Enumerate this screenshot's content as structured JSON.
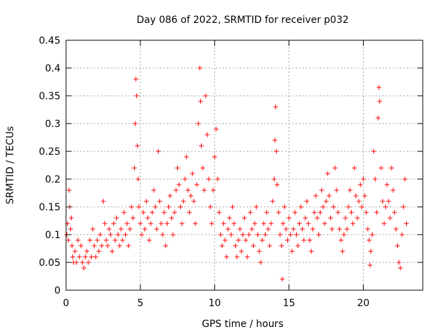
{
  "chart_data": {
    "type": "scatter",
    "title": "Day 086 of 2022, SRMTID for receiver p032",
    "xlabel": "GPS time / hours",
    "ylabel": "SRMTID / TECUs",
    "xlim": [
      0,
      24
    ],
    "ylim": [
      0,
      0.45
    ],
    "grid": true,
    "marker": "+",
    "colors": {
      "series": "#ff0000",
      "grid": "#a0a0a0",
      "axis": "#000000"
    },
    "xticks": [
      0,
      5,
      10,
      15,
      20
    ],
    "xtick_labels": [
      "0",
      "5",
      "10",
      "15",
      "20"
    ],
    "yticks": [
      0,
      0.05,
      0.1,
      0.15,
      0.2,
      0.25,
      0.3,
      0.35,
      0.4,
      0.45
    ],
    "ytick_labels": [
      "0",
      "0.05",
      "0.1",
      "0.15",
      "0.2",
      "0.25",
      "0.3",
      "0.35",
      "0.4",
      "0.45"
    ],
    "series": [
      {
        "name": "SRMTID p032",
        "points": [
          [
            0.05,
            0.1
          ],
          [
            0.1,
            0.12
          ],
          [
            0.15,
            0.09
          ],
          [
            0.2,
            0.18
          ],
          [
            0.25,
            0.15
          ],
          [
            0.3,
            0.11
          ],
          [
            0.35,
            0.13
          ],
          [
            0.4,
            0.08
          ],
          [
            0.45,
            0.06
          ],
          [
            0.5,
            0.05
          ],
          [
            0.6,
            0.07
          ],
          [
            0.7,
            0.05
          ],
          [
            0.8,
            0.09
          ],
          [
            0.9,
            0.06
          ],
          [
            1.0,
            0.08
          ],
          [
            1.1,
            0.05
          ],
          [
            1.2,
            0.04
          ],
          [
            1.3,
            0.06
          ],
          [
            1.4,
            0.07
          ],
          [
            1.5,
            0.05
          ],
          [
            1.6,
            0.09
          ],
          [
            1.7,
            0.06
          ],
          [
            1.8,
            0.11
          ],
          [
            1.9,
            0.08
          ],
          [
            2.0,
            0.06
          ],
          [
            2.1,
            0.09
          ],
          [
            2.2,
            0.07
          ],
          [
            2.3,
            0.1
          ],
          [
            2.4,
            0.08
          ],
          [
            2.5,
            0.16
          ],
          [
            2.6,
            0.12
          ],
          [
            2.7,
            0.09
          ],
          [
            2.8,
            0.08
          ],
          [
            2.9,
            0.11
          ],
          [
            3.0,
            0.1
          ],
          [
            3.1,
            0.07
          ],
          [
            3.2,
            0.12
          ],
          [
            3.3,
            0.09
          ],
          [
            3.4,
            0.13
          ],
          [
            3.5,
            0.1
          ],
          [
            3.6,
            0.08
          ],
          [
            3.7,
            0.11
          ],
          [
            3.8,
            0.09
          ],
          [
            3.9,
            0.14
          ],
          [
            4.0,
            0.1
          ],
          [
            4.1,
            0.12
          ],
          [
            4.2,
            0.08
          ],
          [
            4.3,
            0.11
          ],
          [
            4.4,
            0.15
          ],
          [
            4.5,
            0.13
          ],
          [
            4.6,
            0.22
          ],
          [
            4.65,
            0.3
          ],
          [
            4.7,
            0.38
          ],
          [
            4.75,
            0.35
          ],
          [
            4.8,
            0.26
          ],
          [
            4.85,
            0.2
          ],
          [
            4.9,
            0.15
          ],
          [
            5.0,
            0.12
          ],
          [
            5.1,
            0.1
          ],
          [
            5.2,
            0.14
          ],
          [
            5.3,
            0.11
          ],
          [
            5.4,
            0.16
          ],
          [
            5.5,
            0.13
          ],
          [
            5.6,
            0.09
          ],
          [
            5.7,
            0.12
          ],
          [
            5.8,
            0.14
          ],
          [
            5.9,
            0.18
          ],
          [
            6.0,
            0.15
          ],
          [
            6.1,
            0.11
          ],
          [
            6.2,
            0.25
          ],
          [
            6.3,
            0.16
          ],
          [
            6.4,
            0.12
          ],
          [
            6.5,
            0.1
          ],
          [
            6.6,
            0.14
          ],
          [
            6.7,
            0.08
          ],
          [
            6.8,
            0.12
          ],
          [
            6.9,
            0.15
          ],
          [
            7.0,
            0.17
          ],
          [
            7.1,
            0.13
          ],
          [
            7.2,
            0.1
          ],
          [
            7.3,
            0.14
          ],
          [
            7.4,
            0.18
          ],
          [
            7.5,
            0.22
          ],
          [
            7.6,
            0.19
          ],
          [
            7.7,
            0.15
          ],
          [
            7.8,
            0.12
          ],
          [
            7.9,
            0.16
          ],
          [
            8.0,
            0.2
          ],
          [
            8.1,
            0.24
          ],
          [
            8.2,
            0.18
          ],
          [
            8.3,
            0.14
          ],
          [
            8.4,
            0.17
          ],
          [
            8.5,
            0.21
          ],
          [
            8.6,
            0.16
          ],
          [
            8.7,
            0.12
          ],
          [
            8.8,
            0.19
          ],
          [
            8.9,
            0.3
          ],
          [
            9.0,
            0.4
          ],
          [
            9.05,
            0.34
          ],
          [
            9.1,
            0.26
          ],
          [
            9.2,
            0.22
          ],
          [
            9.3,
            0.18
          ],
          [
            9.4,
            0.35
          ],
          [
            9.5,
            0.28
          ],
          [
            9.6,
            0.2
          ],
          [
            9.7,
            0.15
          ],
          [
            9.8,
            0.12
          ],
          [
            9.9,
            0.18
          ],
          [
            10.0,
            0.24
          ],
          [
            10.1,
            0.29
          ],
          [
            10.2,
            0.2
          ],
          [
            10.3,
            0.14
          ],
          [
            10.4,
            0.1
          ],
          [
            10.5,
            0.08
          ],
          [
            10.6,
            0.12
          ],
          [
            10.7,
            0.09
          ],
          [
            10.8,
            0.06
          ],
          [
            10.9,
            0.11
          ],
          [
            11.0,
            0.13
          ],
          [
            11.1,
            0.1
          ],
          [
            11.2,
            0.15
          ],
          [
            11.3,
            0.12
          ],
          [
            11.4,
            0.08
          ],
          [
            11.5,
            0.06
          ],
          [
            11.6,
            0.09
          ],
          [
            11.7,
            0.11
          ],
          [
            11.8,
            0.07
          ],
          [
            11.9,
            0.1
          ],
          [
            12.0,
            0.13
          ],
          [
            12.1,
            0.09
          ],
          [
            12.2,
            0.06
          ],
          [
            12.3,
            0.1
          ],
          [
            12.4,
            0.14
          ],
          [
            12.5,
            0.11
          ],
          [
            12.6,
            0.08
          ],
          [
            12.7,
            0.12
          ],
          [
            12.8,
            0.15
          ],
          [
            12.9,
            0.1
          ],
          [
            13.0,
            0.07
          ],
          [
            13.1,
            0.05
          ],
          [
            13.2,
            0.09
          ],
          [
            13.3,
            0.12
          ],
          [
            13.4,
            0.1
          ],
          [
            13.5,
            0.14
          ],
          [
            13.6,
            0.11
          ],
          [
            13.7,
            0.08
          ],
          [
            13.8,
            0.12
          ],
          [
            13.9,
            0.16
          ],
          [
            14.0,
            0.2
          ],
          [
            14.05,
            0.27
          ],
          [
            14.1,
            0.33
          ],
          [
            14.15,
            0.25
          ],
          [
            14.2,
            0.19
          ],
          [
            14.3,
            0.14
          ],
          [
            14.4,
            0.1
          ],
          [
            14.5,
            0.08
          ],
          [
            14.55,
            0.02
          ],
          [
            14.6,
            0.12
          ],
          [
            14.7,
            0.15
          ],
          [
            14.8,
            0.11
          ],
          [
            14.9,
            0.09
          ],
          [
            15.0,
            0.13
          ],
          [
            15.1,
            0.1
          ],
          [
            15.2,
            0.07
          ],
          [
            15.3,
            0.11
          ],
          [
            15.4,
            0.14
          ],
          [
            15.5,
            0.1
          ],
          [
            15.6,
            0.08
          ],
          [
            15.7,
            0.12
          ],
          [
            15.8,
            0.15
          ],
          [
            15.9,
            0.11
          ],
          [
            16.0,
            0.09
          ],
          [
            16.1,
            0.13
          ],
          [
            16.2,
            0.16
          ],
          [
            16.3,
            0.12
          ],
          [
            16.4,
            0.09
          ],
          [
            16.5,
            0.07
          ],
          [
            16.6,
            0.11
          ],
          [
            16.7,
            0.14
          ],
          [
            16.8,
            0.17
          ],
          [
            16.9,
            0.13
          ],
          [
            17.0,
            0.1
          ],
          [
            17.1,
            0.14
          ],
          [
            17.2,
            0.18
          ],
          [
            17.3,
            0.15
          ],
          [
            17.4,
            0.12
          ],
          [
            17.5,
            0.16
          ],
          [
            17.6,
            0.21
          ],
          [
            17.7,
            0.17
          ],
          [
            17.8,
            0.13
          ],
          [
            17.9,
            0.11
          ],
          [
            18.0,
            0.15
          ],
          [
            18.1,
            0.22
          ],
          [
            18.2,
            0.18
          ],
          [
            18.3,
            0.14
          ],
          [
            18.4,
            0.11
          ],
          [
            18.5,
            0.09
          ],
          [
            18.6,
            0.07
          ],
          [
            18.7,
            0.1
          ],
          [
            18.8,
            0.13
          ],
          [
            18.9,
            0.11
          ],
          [
            19.0,
            0.15
          ],
          [
            19.1,
            0.18
          ],
          [
            19.2,
            0.14
          ],
          [
            19.3,
            0.12
          ],
          [
            19.4,
            0.22
          ],
          [
            19.5,
            0.17
          ],
          [
            19.6,
            0.13
          ],
          [
            19.7,
            0.16
          ],
          [
            19.8,
            0.19
          ],
          [
            19.9,
            0.15
          ],
          [
            20.0,
            0.2
          ],
          [
            20.1,
            0.17
          ],
          [
            20.2,
            0.14
          ],
          [
            20.3,
            0.11
          ],
          [
            20.4,
            0.09
          ],
          [
            20.45,
            0.045
          ],
          [
            20.5,
            0.07
          ],
          [
            20.6,
            0.1
          ],
          [
            20.7,
            0.25
          ],
          [
            20.8,
            0.2
          ],
          [
            20.9,
            0.14
          ],
          [
            21.0,
            0.31
          ],
          [
            21.05,
            0.365
          ],
          [
            21.1,
            0.34
          ],
          [
            21.2,
            0.22
          ],
          [
            21.3,
            0.16
          ],
          [
            21.4,
            0.12
          ],
          [
            21.5,
            0.15
          ],
          [
            21.6,
            0.19
          ],
          [
            21.7,
            0.16
          ],
          [
            21.8,
            0.13
          ],
          [
            21.9,
            0.22
          ],
          [
            22.0,
            0.18
          ],
          [
            22.1,
            0.14
          ],
          [
            22.2,
            0.11
          ],
          [
            22.3,
            0.08
          ],
          [
            22.4,
            0.05
          ],
          [
            22.5,
            0.04
          ],
          [
            22.6,
            0.1
          ],
          [
            22.7,
            0.15
          ],
          [
            22.8,
            0.2
          ],
          [
            22.9,
            0.12
          ]
        ]
      }
    ]
  }
}
